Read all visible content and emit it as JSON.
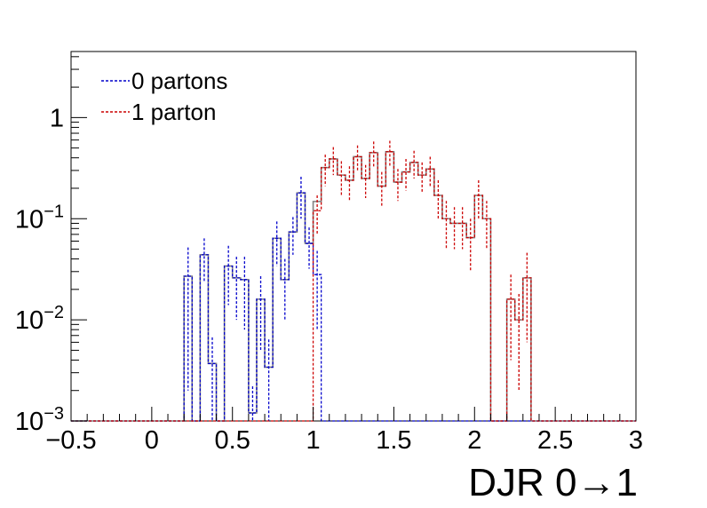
{
  "chart_data": {
    "type": "histogram",
    "xlabel": "DJR 0→1",
    "ylabel": "",
    "x_edges_start": -0.5,
    "bin_width": 0.05,
    "xlim": [
      -0.5,
      3.0
    ],
    "ylim": [
      0.001,
      4.5
    ],
    "yscale": "log",
    "x_ticks": [
      -0.5,
      0,
      0.5,
      1,
      1.5,
      2,
      2.5,
      3
    ],
    "x_tick_labels": [
      "−0.5",
      "0",
      "0.5",
      "1",
      "1.5",
      "2",
      "2.5",
      "3"
    ],
    "y_ticks": [
      {
        "value": 0.001,
        "base": "10",
        "exp": "−3"
      },
      {
        "value": 0.01,
        "base": "10",
        "exp": "−2"
      },
      {
        "value": 0.1,
        "base": "10",
        "exp": "−1"
      },
      {
        "value": 1,
        "base": "1",
        "exp": ""
      }
    ],
    "legend_position": "top-left",
    "series": [
      {
        "name": "0 partons",
        "color": "#0000cc",
        "style": "dotted",
        "values": [
          0,
          0,
          0,
          0,
          0,
          0,
          0,
          0,
          0,
          0,
          0,
          0,
          0,
          0,
          0.027,
          0,
          0.044,
          0.0037,
          0,
          0.034,
          0.026,
          0.025,
          0.0012,
          0.016,
          0.0034,
          0.064,
          0.025,
          0.074,
          0.18,
          0.057,
          0.028,
          0,
          0,
          0,
          0,
          0,
          0,
          0,
          0,
          0,
          0,
          0,
          0,
          0,
          0,
          0,
          0,
          0,
          0,
          0,
          0,
          0,
          0,
          0,
          0,
          0,
          0,
          0,
          0,
          0,
          0,
          0,
          0,
          0,
          0,
          0,
          0,
          0,
          0,
          0
        ],
        "errors": [
          0,
          0,
          0,
          0,
          0,
          0,
          0,
          0,
          0,
          0,
          0,
          0,
          0,
          0,
          0.025,
          0,
          0.02,
          0.003,
          0,
          0.02,
          0.016,
          0.017,
          0.001,
          0.011,
          0.003,
          0.03,
          0.015,
          0.03,
          0.08,
          0.025,
          0.02,
          0,
          0,
          0,
          0,
          0,
          0,
          0,
          0,
          0,
          0,
          0,
          0,
          0,
          0,
          0,
          0,
          0,
          0,
          0,
          0,
          0,
          0,
          0,
          0,
          0,
          0,
          0,
          0,
          0,
          0,
          0,
          0,
          0,
          0,
          0,
          0,
          0,
          0,
          0
        ]
      },
      {
        "name": "1 parton",
        "color": "#cc0000",
        "style": "dotted",
        "values": [
          0,
          0,
          0,
          0,
          0,
          0,
          0,
          0,
          0,
          0,
          0,
          0,
          0,
          0,
          0,
          0,
          0,
          0,
          0,
          0,
          0,
          0,
          0,
          0,
          0,
          0,
          0,
          0,
          0,
          0,
          0.12,
          0.32,
          0.39,
          0.27,
          0.24,
          0.41,
          0.25,
          0.45,
          0.21,
          0.46,
          0.23,
          0.29,
          0.36,
          0.27,
          0.31,
          0.17,
          0.1,
          0.09,
          0.09,
          0.065,
          0.17,
          0.1,
          0,
          0,
          0.016,
          0.01,
          0.026,
          0,
          0,
          0,
          0,
          0,
          0,
          0,
          0,
          0,
          0,
          0,
          0,
          0
        ],
        "errors": [
          0,
          0,
          0,
          0,
          0,
          0,
          0,
          0,
          0,
          0,
          0,
          0,
          0,
          0,
          0,
          0,
          0,
          0,
          0,
          0,
          0,
          0,
          0,
          0,
          0,
          0,
          0,
          0,
          0,
          0,
          0.05,
          0.11,
          0.12,
          0.1,
          0.09,
          0.12,
          0.09,
          0.13,
          0.08,
          0.13,
          0.08,
          0.1,
          0.11,
          0.09,
          0.1,
          0.07,
          0.05,
          0.04,
          0.04,
          0.035,
          0.07,
          0.05,
          0,
          0,
          0.012,
          0.008,
          0.02,
          0,
          0,
          0,
          0,
          0,
          0,
          0,
          0,
          0,
          0,
          0,
          0,
          0
        ]
      }
    ]
  }
}
